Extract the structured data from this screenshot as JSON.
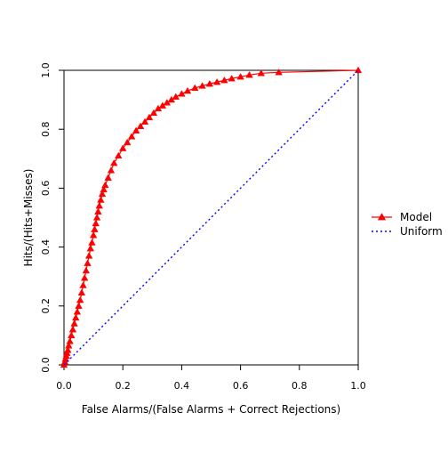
{
  "chart_data": {
    "type": "line",
    "title": "",
    "xlabel": "False Alarms/(False Alarms + Correct Rejections)",
    "ylabel": "Hits/(Hits+Misses)",
    "xlim": [
      0,
      1
    ],
    "ylim": [
      0,
      1
    ],
    "xticks": [
      0,
      0.2,
      0.4,
      0.6,
      0.8,
      1
    ],
    "xtick_labels": [
      "0.0",
      "0.2",
      "0.4",
      "0.6",
      "0.8",
      "1.0"
    ],
    "yticks": [
      0,
      0.2,
      0.4,
      0.6,
      0.8,
      1
    ],
    "ytick_labels": [
      "0.0",
      "0.2",
      "0.4",
      "0.6",
      "0.8",
      "1.0"
    ],
    "grid": false,
    "legend_position": "right",
    "series": [
      {
        "name": "Model",
        "color": "#ff0000",
        "line_style": "solid",
        "marker": "triangle",
        "x": [
          0,
          0.003,
          0.005,
          0.008,
          0.01,
          0.013,
          0.016,
          0.02,
          0.025,
          0.03,
          0.035,
          0.04,
          0.045,
          0.05,
          0.055,
          0.06,
          0.065,
          0.07,
          0.075,
          0.08,
          0.085,
          0.09,
          0.095,
          0.1,
          0.104,
          0.108,
          0.112,
          0.116,
          0.12,
          0.125,
          0.13,
          0.135,
          0.14,
          0.15,
          0.16,
          0.17,
          0.185,
          0.2,
          0.215,
          0.23,
          0.245,
          0.26,
          0.275,
          0.29,
          0.305,
          0.32,
          0.335,
          0.35,
          0.365,
          0.38,
          0.4,
          0.42,
          0.445,
          0.47,
          0.495,
          0.52,
          0.545,
          0.57,
          0.6,
          0.63,
          0.67,
          0.73,
          1.0
        ],
        "y": [
          0,
          0.01,
          0.02,
          0.03,
          0.04,
          0.05,
          0.065,
          0.08,
          0.1,
          0.12,
          0.14,
          0.16,
          0.18,
          0.2,
          0.22,
          0.245,
          0.27,
          0.295,
          0.32,
          0.345,
          0.37,
          0.395,
          0.415,
          0.44,
          0.46,
          0.48,
          0.5,
          0.52,
          0.54,
          0.56,
          0.58,
          0.595,
          0.61,
          0.635,
          0.66,
          0.685,
          0.71,
          0.735,
          0.755,
          0.775,
          0.795,
          0.81,
          0.825,
          0.84,
          0.855,
          0.87,
          0.88,
          0.89,
          0.9,
          0.91,
          0.92,
          0.93,
          0.94,
          0.947,
          0.954,
          0.96,
          0.966,
          0.972,
          0.978,
          0.984,
          0.99,
          0.993,
          1.0
        ]
      },
      {
        "name": "Uniform",
        "color": "#0000ff",
        "line_style": "dotted",
        "marker": "none",
        "x": [
          0,
          1
        ],
        "y": [
          0,
          1
        ]
      }
    ]
  }
}
